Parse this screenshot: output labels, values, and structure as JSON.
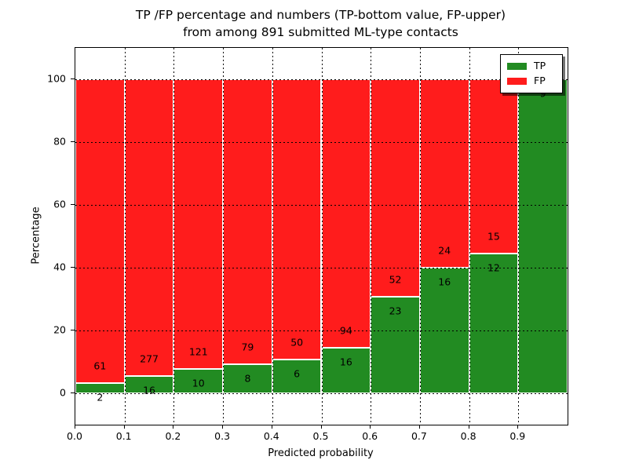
{
  "figure": {
    "title_line1": "TP /FP percentage and numbers (TP-bottom value, FP-upper)",
    "title_line2": "from among 891 submitted ML-type contacts",
    "xlabel": "Predicted probability",
    "ylabel": "Percentage",
    "legend_tp": "TP",
    "legend_fp": "FP"
  },
  "chart_data": {
    "type": "bar",
    "stacked": true,
    "normalized_to_percent": true,
    "title": "TP /FP percentage and numbers (TP-bottom value, FP-upper)\nfrom among 891 submitted ML-type contacts",
    "xlabel": "Predicted probability",
    "ylabel": "Percentage",
    "total_contacts": 891,
    "bins": [
      "0.0-0.1",
      "0.1-0.2",
      "0.2-0.3",
      "0.3-0.4",
      "0.4-0.5",
      "0.5-0.6",
      "0.6-0.7",
      "0.7-0.8",
      "0.8-0.9",
      "0.9-1.0"
    ],
    "series": [
      {
        "name": "TP",
        "color": "#228b22",
        "counts": [
          2,
          16,
          10,
          8,
          6,
          16,
          23,
          16,
          12,
          9
        ]
      },
      {
        "name": "FP",
        "color": "#ff1c1c",
        "counts": [
          61,
          277,
          121,
          79,
          50,
          94,
          52,
          24,
          15,
          0
        ]
      }
    ],
    "tp_percent_heights": [
      3.2,
      5.5,
      7.6,
      9.2,
      10.7,
      14.5,
      30.7,
      40.0,
      44.4,
      100.0
    ],
    "bar_labels": {
      "tp": [
        "2",
        "16",
        "10",
        "8",
        "6",
        "16",
        "23",
        "16",
        "12",
        "9"
      ],
      "fp": [
        "61",
        "277",
        "121",
        "79",
        "50",
        "94",
        "52",
        "24",
        "15",
        ""
      ]
    },
    "xticks": [
      "0.0",
      "0.1",
      "0.2",
      "0.3",
      "0.4",
      "0.5",
      "0.6",
      "0.7",
      "0.8",
      "0.9"
    ],
    "yticks": [
      "0",
      "20",
      "40",
      "60",
      "80",
      "100"
    ],
    "xlim": [
      0.0,
      1.0
    ],
    "ylim": [
      -10,
      110
    ],
    "grid": {
      "style": "dotted",
      "color": "#000000",
      "drawn_above_bars": true
    },
    "bar_edge_color": "#ffffff",
    "legend": {
      "position": "upper right",
      "items": [
        "TP",
        "FP"
      ]
    },
    "notes": "FP count label of last bin hidden behind legend; TP label 9 partially covered by legend"
  }
}
